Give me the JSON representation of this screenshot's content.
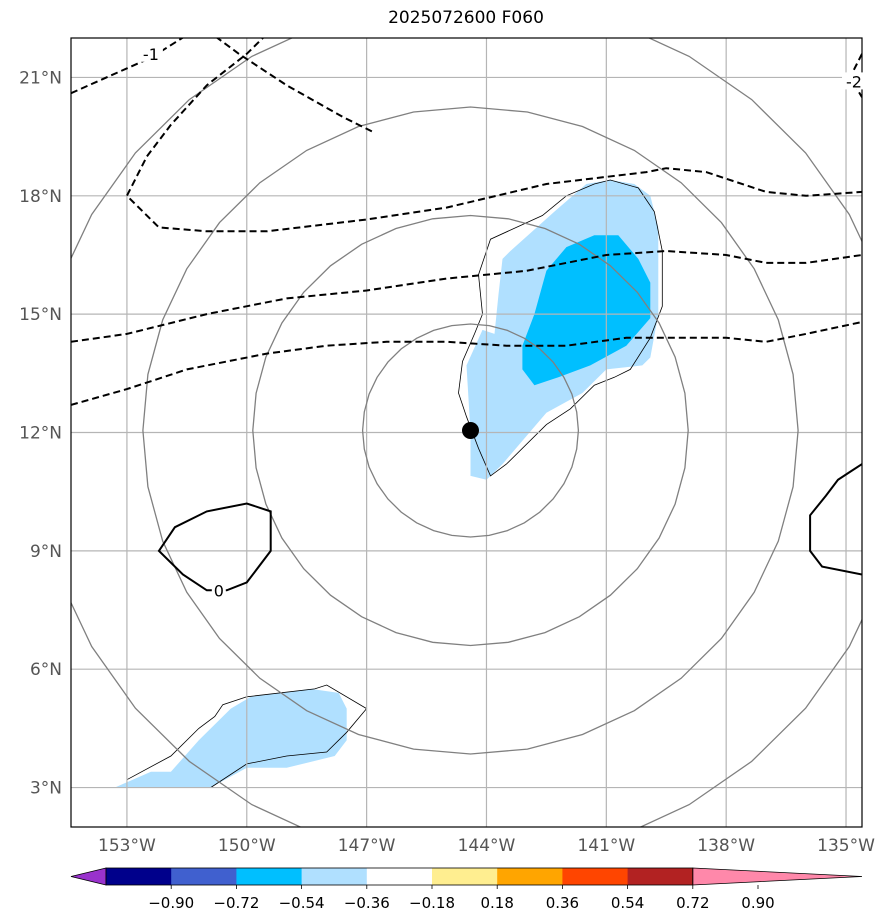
{
  "title": "2025072600 F060",
  "map": {
    "lon_range": [
      -154.4,
      -134.6
    ],
    "lat_range": [
      2.0,
      22.0
    ],
    "lon_ticks": [
      {
        "value": -153,
        "label": "153°W"
      },
      {
        "value": -150,
        "label": "150°W"
      },
      {
        "value": -147,
        "label": "147°W"
      },
      {
        "value": -144,
        "label": "144°W"
      },
      {
        "value": -141,
        "label": "141°W"
      },
      {
        "value": -138,
        "label": "138°W"
      },
      {
        "value": -135,
        "label": "135°W"
      }
    ],
    "lat_ticks": [
      {
        "value": 3,
        "label": "3°N"
      },
      {
        "value": 6,
        "label": "6°N"
      },
      {
        "value": 9,
        "label": "9°N"
      },
      {
        "value": 12,
        "label": "12°N"
      },
      {
        "value": 15,
        "label": "15°N"
      },
      {
        "value": 18,
        "label": "18°N"
      },
      {
        "value": 21,
        "label": "21°N"
      }
    ],
    "center_marker": {
      "lon": -144.4,
      "lat": 12.05
    },
    "range_rings_deg": [
      2.7,
      5.45,
      8.2,
      10.95
    ],
    "contour_labels": [
      {
        "text": "-1",
        "lon": -152.4,
        "lat": 21.6
      },
      {
        "text": "-2",
        "lon": -134.8,
        "lat": 20.9
      },
      {
        "text": "0",
        "lon": -150.7,
        "lat": 8.0
      }
    ]
  },
  "colorbar": {
    "colors": [
      "#9932cc",
      "#00008b",
      "#4060cf",
      "#00bfff",
      "#b0e0ff",
      "#ffffff",
      "#ffee90",
      "#ffa500",
      "#ff4500",
      "#b22222",
      "#ff88aa"
    ],
    "tick_labels": [
      "−0.90",
      "−0.72",
      "−0.54",
      "−0.36",
      "−0.18",
      "0.18",
      "0.36",
      "0.54",
      "0.72",
      "0.90"
    ]
  },
  "fill_colors": {
    "light": "#b0e0ff",
    "medium": "#00bfff"
  }
}
